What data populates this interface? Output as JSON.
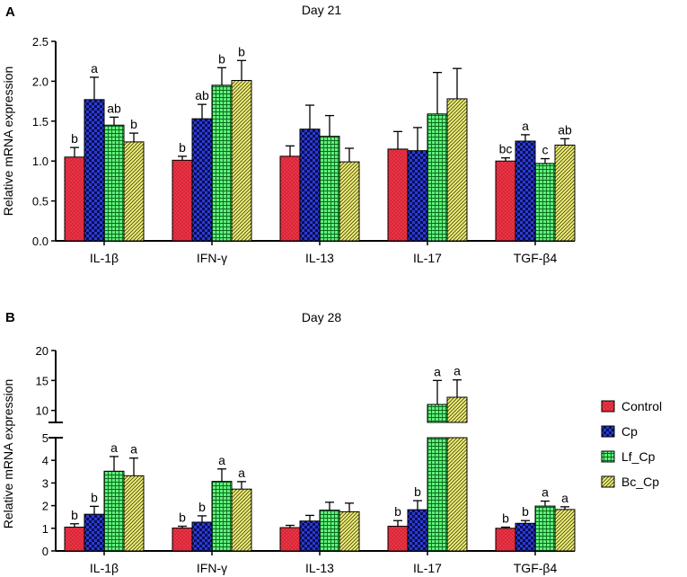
{
  "legend": {
    "entries": [
      "Control",
      "Cp",
      "Lf_Cp",
      "Bc_Cp"
    ],
    "placement": "right"
  },
  "series_styles": [
    {
      "name": "Control",
      "color": "#ee3344",
      "pattern": "dots"
    },
    {
      "name": "Cp",
      "color": "#2233cc",
      "pattern": "checker"
    },
    {
      "name": "Lf_Cp",
      "color": "#33dd55",
      "pattern": "grid"
    },
    {
      "name": "Bc_Cp",
      "color": "#eeee77",
      "pattern": "diagonal"
    }
  ],
  "chart_data": [
    {
      "type": "bar",
      "panel_label": "A",
      "title": "Day 21",
      "ylabel": "Relative mRNA expression",
      "xlabel": "",
      "categories": [
        "IL-1β",
        "IFN-γ",
        "IL-13",
        "IL-17",
        "TGF-β4"
      ],
      "ylim": [
        0,
        2.5
      ],
      "yticks": [
        "0.0",
        "0.5",
        "1.0",
        "1.5",
        "2.0",
        "2.5"
      ],
      "series": [
        {
          "name": "Control",
          "values": [
            1.05,
            1.01,
            1.06,
            1.15,
            1.0
          ],
          "errors": [
            0.12,
            0.05,
            0.13,
            0.22,
            0.04
          ],
          "labels": [
            "b",
            "b",
            "",
            "",
            "bc"
          ]
        },
        {
          "name": "Cp",
          "values": [
            1.77,
            1.53,
            1.4,
            1.13,
            1.25
          ],
          "errors": [
            0.28,
            0.18,
            0.3,
            0.29,
            0.08
          ],
          "labels": [
            "a",
            "ab",
            "",
            "",
            "a"
          ]
        },
        {
          "name": "Lf_Cp",
          "values": [
            1.45,
            1.95,
            1.31,
            1.59,
            0.97
          ],
          "errors": [
            0.1,
            0.22,
            0.26,
            0.52,
            0.06
          ],
          "labels": [
            "ab",
            "b",
            "",
            "",
            "c"
          ]
        },
        {
          "name": "Bc_Cp",
          "values": [
            1.24,
            2.01,
            0.99,
            1.78,
            1.2
          ],
          "errors": [
            0.11,
            0.25,
            0.17,
            0.38,
            0.08
          ],
          "labels": [
            "b",
            "b",
            "",
            "",
            "ab"
          ]
        }
      ]
    },
    {
      "type": "bar",
      "panel_label": "B",
      "title": "Day 28",
      "ylabel": "Relative mRNA expression",
      "xlabel": "",
      "categories": [
        "IL-1β",
        "IFN-γ",
        "IL-13",
        "IL-17",
        "TGF-β4"
      ],
      "y_break": true,
      "lower_ylim": [
        0,
        5
      ],
      "upper_ylim": [
        8,
        20
      ],
      "lower_yticks": [
        "0",
        "1",
        "2",
        "3",
        "4",
        "5"
      ],
      "upper_yticks": [
        "10",
        "15",
        "20"
      ],
      "series": [
        {
          "name": "Control",
          "values": [
            1.05,
            1.01,
            1.03,
            1.09,
            1.0
          ],
          "errors": [
            0.15,
            0.08,
            0.1,
            0.25,
            0.05
          ],
          "labels": [
            "b",
            "b",
            "",
            "b",
            "b"
          ]
        },
        {
          "name": "Cp",
          "values": [
            1.62,
            1.27,
            1.32,
            1.82,
            1.22
          ],
          "errors": [
            0.35,
            0.28,
            0.25,
            0.4,
            0.12
          ],
          "labels": [
            "b",
            "b",
            "",
            "b",
            "b"
          ]
        },
        {
          "name": "Lf_Cp",
          "values": [
            3.52,
            3.07,
            1.8,
            11.0,
            1.98
          ],
          "errors": [
            0.65,
            0.55,
            0.35,
            4.0,
            0.22
          ],
          "labels": [
            "a",
            "a",
            "",
            "a",
            "a"
          ]
        },
        {
          "name": "Bc_Cp",
          "values": [
            3.32,
            2.73,
            1.73,
            12.2,
            1.83
          ],
          "errors": [
            0.78,
            0.33,
            0.38,
            2.9,
            0.12
          ],
          "labels": [
            "a",
            "a",
            "",
            "a",
            "a"
          ]
        }
      ]
    }
  ]
}
